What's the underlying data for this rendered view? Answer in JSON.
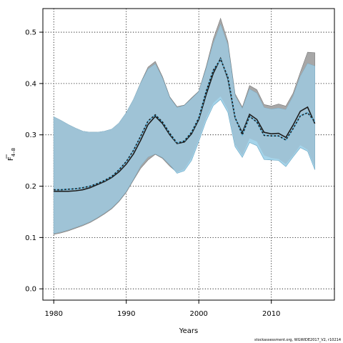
{
  "chart_data": {
    "type": "line",
    "xlabel": "Years",
    "ylabel_main": "F",
    "ylabel_sub": "4–8",
    "xlim": [
      1978.5,
      2018.7
    ],
    "ylim": [
      -0.022,
      0.546
    ],
    "grid": true,
    "xticks": [
      1980,
      1990,
      2000,
      2010
    ],
    "yticks": [
      0.0,
      0.1,
      0.2,
      0.3,
      0.4,
      0.5
    ],
    "ytick_labels": [
      "0.0",
      "0.1",
      "0.2",
      "0.3",
      "0.4",
      "0.5"
    ],
    "x": [
      1980,
      1981,
      1982,
      1983,
      1984,
      1985,
      1986,
      1987,
      1988,
      1989,
      1990,
      1991,
      1992,
      1993,
      1994,
      1995,
      1996,
      1997,
      1998,
      1999,
      2000,
      2001,
      2002,
      2003,
      2004,
      2005,
      2006,
      2007,
      2008,
      2009,
      2010,
      2011,
      2012,
      2013,
      2014,
      2015,
      2016
    ],
    "series": [
      {
        "role": "estimate",
        "values": [
          0.19,
          0.19,
          0.19,
          0.191,
          0.193,
          0.197,
          0.203,
          0.209,
          0.217,
          0.228,
          0.243,
          0.263,
          0.29,
          0.32,
          0.336,
          0.322,
          0.3,
          0.283,
          0.286,
          0.302,
          0.33,
          0.378,
          0.42,
          0.449,
          0.41,
          0.333,
          0.304,
          0.34,
          0.33,
          0.305,
          0.302,
          0.303,
          0.295,
          0.319,
          0.346,
          0.354,
          0.322
        ]
      },
      {
        "role": "estimate",
        "values": [
          0.193,
          0.193,
          0.194,
          0.195,
          0.197,
          0.2,
          0.205,
          0.211,
          0.219,
          0.232,
          0.248,
          0.27,
          0.298,
          0.327,
          0.339,
          0.325,
          0.303,
          0.284,
          0.288,
          0.305,
          0.333,
          0.384,
          0.426,
          0.447,
          0.413,
          0.334,
          0.3,
          0.336,
          0.325,
          0.299,
          0.298,
          0.298,
          0.29,
          0.312,
          0.337,
          0.343,
          0.326
        ]
      }
    ],
    "bands": [
      {
        "role": "uncertainty",
        "color": "#a7a7a7",
        "upper": [
          0.335,
          0.328,
          0.32,
          0.313,
          0.307,
          0.305,
          0.305,
          0.307,
          0.311,
          0.323,
          0.343,
          0.369,
          0.402,
          0.432,
          0.443,
          0.413,
          0.374,
          0.355,
          0.358,
          0.372,
          0.385,
          0.432,
          0.487,
          0.527,
          0.482,
          0.38,
          0.354,
          0.396,
          0.388,
          0.359,
          0.356,
          0.36,
          0.356,
          0.381,
          0.422,
          0.461,
          0.46
        ],
        "lower": [
          0.106,
          0.109,
          0.113,
          0.118,
          0.123,
          0.129,
          0.137,
          0.146,
          0.156,
          0.17,
          0.188,
          0.212,
          0.235,
          0.251,
          0.262,
          0.254,
          0.239,
          0.227,
          0.233,
          0.255,
          0.291,
          0.333,
          0.362,
          0.375,
          0.349,
          0.281,
          0.26,
          0.293,
          0.287,
          0.26,
          0.255,
          0.253,
          0.243,
          0.26,
          0.28,
          0.271,
          0.237
        ]
      },
      {
        "role": "uncertainty",
        "color": "#a5d4ea",
        "upper": [
          0.335,
          0.328,
          0.32,
          0.313,
          0.307,
          0.305,
          0.305,
          0.307,
          0.311,
          0.323,
          0.343,
          0.369,
          0.401,
          0.428,
          0.438,
          0.41,
          0.372,
          0.353,
          0.357,
          0.37,
          0.384,
          0.428,
          0.478,
          0.515,
          0.475,
          0.376,
          0.351,
          0.389,
          0.381,
          0.353,
          0.35,
          0.352,
          0.349,
          0.375,
          0.414,
          0.439,
          0.434
        ],
        "lower": [
          0.108,
          0.111,
          0.115,
          0.12,
          0.125,
          0.131,
          0.139,
          0.148,
          0.158,
          0.172,
          0.19,
          0.214,
          0.24,
          0.257,
          0.263,
          0.256,
          0.242,
          0.225,
          0.23,
          0.25,
          0.287,
          0.327,
          0.357,
          0.369,
          0.344,
          0.277,
          0.256,
          0.285,
          0.279,
          0.252,
          0.251,
          0.25,
          0.238,
          0.257,
          0.275,
          0.268,
          0.232
        ]
      }
    ],
    "overlap_color": "#9fc3d6",
    "line_colors": [
      "#1c1c1c",
      "#5bb3dc"
    ]
  },
  "footer": {
    "credit": "stockassessment.org, WGWIDE2017_V2, r10214"
  }
}
